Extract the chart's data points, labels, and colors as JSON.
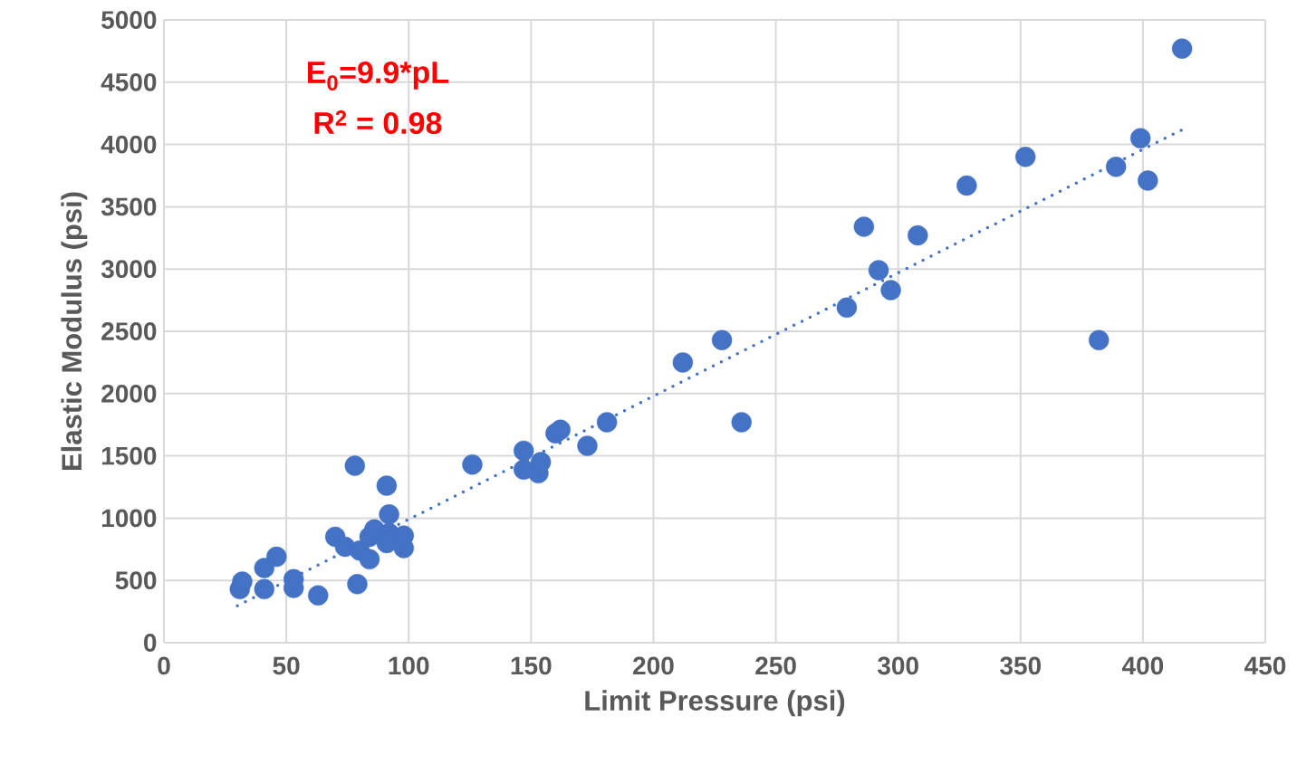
{
  "chart_data": {
    "type": "scatter",
    "xlabel": "Limit Pressure (psi)",
    "ylabel": "Elastic Modulus (psi)",
    "annotations": [
      "E$_{0}$=9.9*pL",
      "R$^{2}$ = 0.98"
    ],
    "series": [
      {
        "type": "scatter",
        "color": "#4472c4",
        "marker": "circle",
        "x": [
          31,
          32,
          41,
          41,
          46,
          53,
          53,
          63,
          70,
          74,
          78,
          79,
          80,
          84,
          84,
          86,
          92,
          91,
          92,
          91,
          98,
          98,
          126,
          147,
          147,
          153,
          154,
          160,
          162,
          173,
          181,
          212,
          228,
          236,
          279,
          286,
          292,
          297,
          308,
          328,
          352,
          382,
          389,
          399,
          402,
          416
        ],
        "values": [
          430,
          490,
          600,
          430,
          690,
          440,
          510,
          380,
          850,
          770,
          1420,
          470,
          740,
          670,
          850,
          910,
          880,
          1260,
          1030,
          800,
          760,
          860,
          1430,
          1540,
          1390,
          1360,
          1450,
          1680,
          1710,
          1580,
          1770,
          2250,
          2430,
          1770,
          2690,
          3340,
          2990,
          2830,
          3270,
          3670,
          3900,
          2430,
          3820,
          4050,
          3710,
          4770
        ]
      },
      {
        "type": "line",
        "color": "#4472c4",
        "marker": "none",
        "line_style": "dotted",
        "x": [
          30,
          416
        ],
        "values": [
          297,
          4118
        ]
      }
    ],
    "xlim": [
      0,
      450
    ],
    "xticks": [
      0,
      50,
      100,
      150,
      200,
      250,
      300,
      350,
      400,
      450
    ],
    "ylim": [
      0,
      5000
    ],
    "yticks": [
      0,
      500,
      1000,
      1500,
      2000,
      2500,
      3000,
      3500,
      4000,
      4500,
      5000
    ],
    "grid": true,
    "legend": false
  }
}
